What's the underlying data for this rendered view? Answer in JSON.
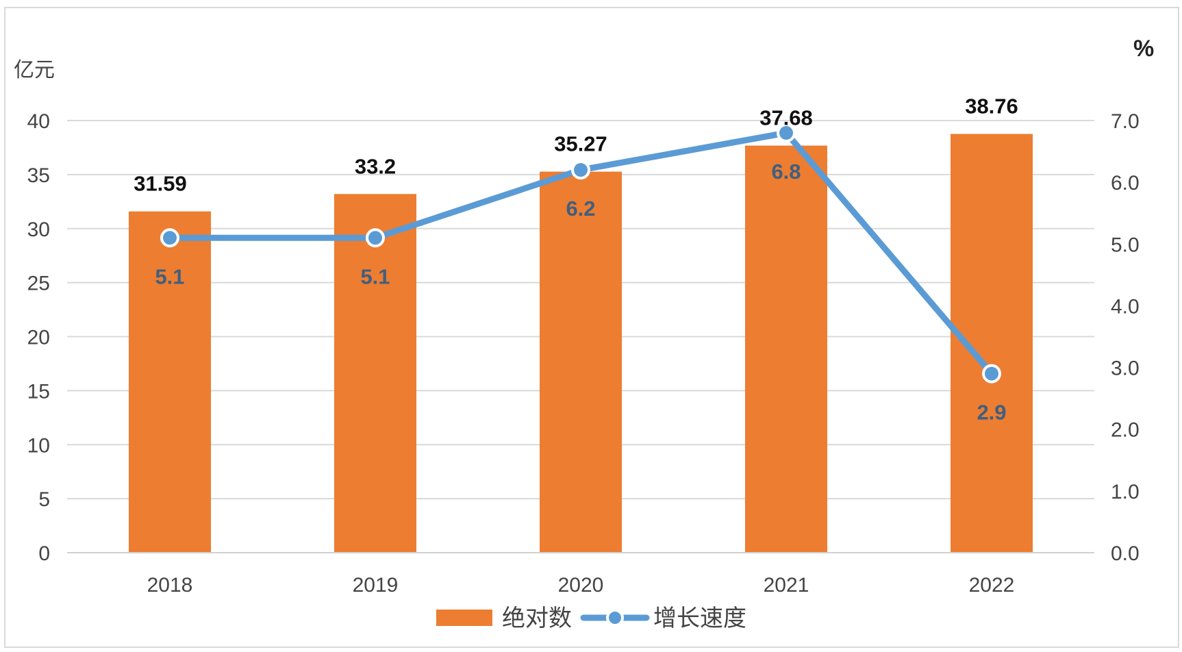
{
  "chart_data": {
    "type": "bar",
    "categories": [
      "2018",
      "2019",
      "2020",
      "2021",
      "2022"
    ],
    "series": [
      {
        "name": "绝对数",
        "type": "bar",
        "axis": "left",
        "values": [
          31.59,
          33.2,
          35.27,
          37.68,
          38.76
        ],
        "labels": [
          "31.59",
          "33.2",
          "35.27",
          "37.68",
          "38.76"
        ],
        "color": "#ed7d31"
      },
      {
        "name": "增长速度",
        "type": "line",
        "axis": "right",
        "values": [
          5.1,
          5.1,
          6.2,
          6.8,
          2.9
        ],
        "labels": [
          "5.1",
          "5.1",
          "6.2",
          "6.8",
          "2.9"
        ],
        "color": "#5b9bd5"
      }
    ],
    "y_left": {
      "unit": "亿元",
      "ylim": [
        0,
        40
      ],
      "ticks": [
        "0",
        "5",
        "10",
        "15",
        "20",
        "25",
        "30",
        "35",
        "40"
      ]
    },
    "y_right": {
      "unit": "%",
      "ylim": [
        0,
        7
      ],
      "ticks": [
        "0.0",
        "1.0",
        "2.0",
        "3.0",
        "4.0",
        "5.0",
        "6.0",
        "7.0"
      ]
    },
    "grid": true,
    "legend": "bottom"
  }
}
